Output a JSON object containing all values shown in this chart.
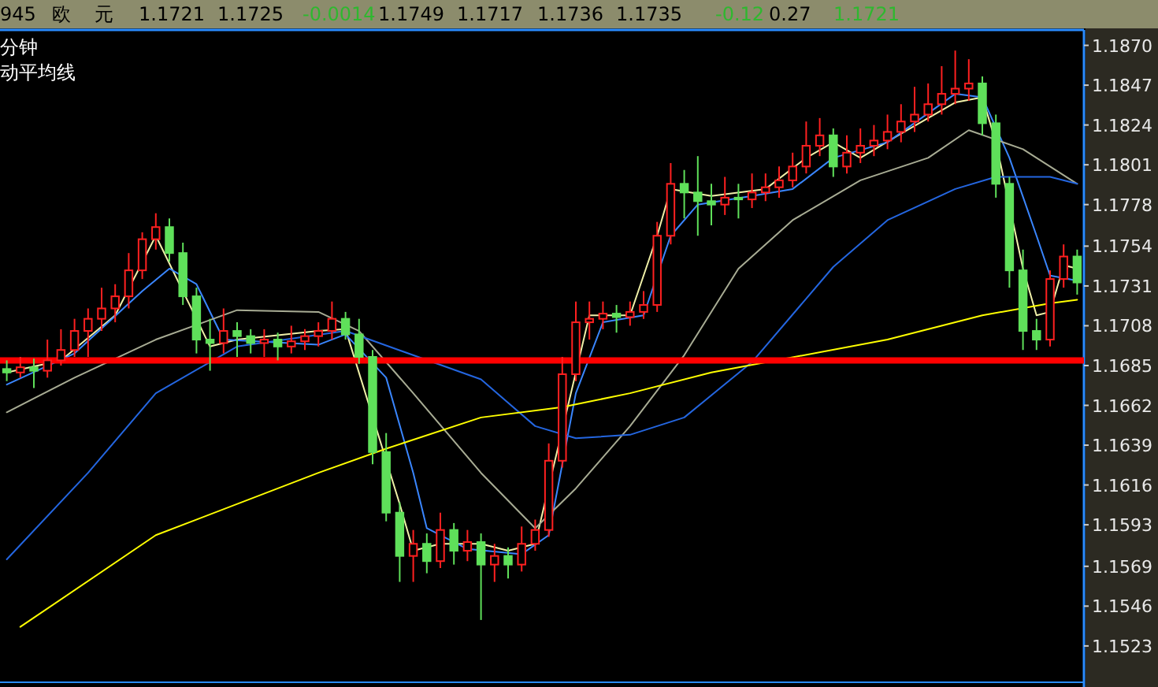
{
  "chart_data": {
    "type": "candlestick",
    "title": "分钟",
    "subtitle": "动平均线",
    "annotations": [
      "945",
      "欧",
      "元",
      "1.1721",
      "1.1725",
      "-0.0014",
      "1.1749",
      "1.1717",
      "1.1736",
      "1.1735",
      "-0.12",
      "0.27",
      "1.1721"
    ],
    "categories": [
      null,
      null,
      null,
      null,
      null,
      null,
      null,
      null,
      null,
      null,
      null,
      null,
      null,
      null,
      null,
      null,
      null,
      null,
      null,
      null,
      null,
      null,
      null,
      null,
      null,
      null,
      null,
      null,
      null,
      null,
      null,
      null,
      null,
      null,
      null,
      null,
      null,
      null,
      null,
      null,
      null,
      null,
      null,
      null,
      null,
      null,
      null,
      null,
      null,
      null,
      null,
      null,
      null,
      null,
      null,
      null,
      null,
      null,
      null,
      null,
      null,
      null,
      null,
      null,
      null,
      null,
      null,
      null,
      null,
      null,
      null,
      null,
      null,
      null,
      null,
      null,
      null,
      null,
      null,
      null
    ],
    "ohlc": [
      [
        1.1683,
        1.1688,
        1.1676,
        1.1681
      ],
      [
        1.1681,
        1.169,
        1.1678,
        1.1684
      ],
      [
        1.1684,
        1.1689,
        1.1672,
        1.1682
      ],
      [
        1.1682,
        1.17,
        1.1678,
        1.1688
      ],
      [
        1.1688,
        1.1706,
        1.1685,
        1.1694
      ],
      [
        1.1694,
        1.1712,
        1.169,
        1.1705
      ],
      [
        1.1705,
        1.1718,
        1.169,
        1.1712
      ],
      [
        1.1712,
        1.173,
        1.1705,
        1.1718
      ],
      [
        1.1718,
        1.1732,
        1.171,
        1.1725
      ],
      [
        1.1725,
        1.175,
        1.1718,
        1.174
      ],
      [
        1.174,
        1.1762,
        1.1735,
        1.1758
      ],
      [
        1.1758,
        1.1773,
        1.1752,
        1.1765
      ],
      [
        1.1765,
        1.177,
        1.1745,
        1.175
      ],
      [
        1.175,
        1.1756,
        1.172,
        1.1725
      ],
      [
        1.1725,
        1.173,
        1.1692,
        1.17
      ],
      [
        1.17,
        1.1712,
        1.1682,
        1.1698
      ],
      [
        1.1698,
        1.1718,
        1.1692,
        1.1705
      ],
      [
        1.1705,
        1.171,
        1.169,
        1.1702
      ],
      [
        1.1702,
        1.1706,
        1.1692,
        1.1698
      ],
      [
        1.1698,
        1.1706,
        1.169,
        1.17
      ],
      [
        1.17,
        1.1704,
        1.1688,
        1.1696
      ],
      [
        1.1696,
        1.1708,
        1.1692,
        1.1699
      ],
      [
        1.1699,
        1.1706,
        1.1694,
        1.1702
      ],
      [
        1.1702,
        1.171,
        1.1696,
        1.1705
      ],
      [
        1.1705,
        1.1722,
        1.17,
        1.1712
      ],
      [
        1.1712,
        1.1716,
        1.17,
        1.1703
      ],
      [
        1.1703,
        1.1712,
        1.1686,
        1.169
      ],
      [
        1.169,
        1.1694,
        1.1628,
        1.1635
      ],
      [
        1.1635,
        1.1646,
        1.1595,
        1.16
      ],
      [
        1.16,
        1.1606,
        1.156,
        1.1575
      ],
      [
        1.1575,
        1.159,
        1.156,
        1.1582
      ],
      [
        1.1582,
        1.1588,
        1.1565,
        1.1572
      ],
      [
        1.1572,
        1.16,
        1.1568,
        1.159
      ],
      [
        1.159,
        1.1594,
        1.157,
        1.1578
      ],
      [
        1.1578,
        1.159,
        1.1572,
        1.1583
      ],
      [
        1.1583,
        1.1588,
        1.1538,
        1.157
      ],
      [
        1.157,
        1.1582,
        1.156,
        1.1575
      ],
      [
        1.1575,
        1.158,
        1.1562,
        1.157
      ],
      [
        1.157,
        1.1592,
        1.1566,
        1.1582
      ],
      [
        1.1582,
        1.1596,
        1.1578,
        1.159
      ],
      [
        1.159,
        1.164,
        1.1586,
        1.163
      ],
      [
        1.163,
        1.169,
        1.1626,
        1.168
      ],
      [
        1.168,
        1.1722,
        1.1676,
        1.171
      ],
      [
        1.171,
        1.1722,
        1.17,
        1.1712
      ],
      [
        1.1712,
        1.1722,
        1.1706,
        1.1715
      ],
      [
        1.1715,
        1.172,
        1.1704,
        1.1713
      ],
      [
        1.1713,
        1.1722,
        1.1708,
        1.1716
      ],
      [
        1.1716,
        1.1728,
        1.1712,
        1.172
      ],
      [
        1.172,
        1.1768,
        1.1716,
        1.176
      ],
      [
        1.176,
        1.1802,
        1.1755,
        1.179
      ],
      [
        1.179,
        1.1798,
        1.177,
        1.1785
      ],
      [
        1.1785,
        1.1806,
        1.176,
        1.178
      ],
      [
        1.178,
        1.179,
        1.1766,
        1.1778
      ],
      [
        1.1778,
        1.1794,
        1.1772,
        1.1782
      ],
      [
        1.1782,
        1.179,
        1.177,
        1.1781
      ],
      [
        1.1781,
        1.1796,
        1.1776,
        1.1785
      ],
      [
        1.1785,
        1.1796,
        1.178,
        1.1788
      ],
      [
        1.1788,
        1.18,
        1.1782,
        1.1792
      ],
      [
        1.1792,
        1.1808,
        1.1788,
        1.18
      ],
      [
        1.18,
        1.1826,
        1.1796,
        1.1812
      ],
      [
        1.1812,
        1.1828,
        1.1806,
        1.1818
      ],
      [
        1.1818,
        1.1822,
        1.1794,
        1.18
      ],
      [
        1.18,
        1.1818,
        1.1796,
        1.1808
      ],
      [
        1.1808,
        1.1822,
        1.1802,
        1.1812
      ],
      [
        1.1812,
        1.1824,
        1.1806,
        1.1815
      ],
      [
        1.1815,
        1.183,
        1.181,
        1.182
      ],
      [
        1.182,
        1.1836,
        1.1814,
        1.1826
      ],
      [
        1.1826,
        1.1846,
        1.182,
        1.183
      ],
      [
        1.183,
        1.1848,
        1.1826,
        1.1836
      ],
      [
        1.1836,
        1.1858,
        1.183,
        1.1842
      ],
      [
        1.1842,
        1.1867,
        1.1836,
        1.1845
      ],
      [
        1.1845,
        1.1862,
        1.1838,
        1.1848
      ],
      [
        1.1848,
        1.1852,
        1.1818,
        1.1825
      ],
      [
        1.1825,
        1.183,
        1.1782,
        1.179
      ],
      [
        1.179,
        1.1794,
        1.173,
        1.174
      ],
      [
        1.174,
        1.1752,
        1.1694,
        1.1705
      ],
      [
        1.1705,
        1.1712,
        1.1694,
        1.17
      ],
      [
        1.17,
        1.174,
        1.1696,
        1.1735
      ],
      [
        1.1735,
        1.1755,
        1.173,
        1.1748
      ],
      [
        1.1748,
        1.1752,
        1.1726,
        1.1733
      ]
    ],
    "series": [
      {
        "type": "line",
        "color": "#f0f0a8",
        "values": [
          1.1681,
          null,
          null,
          null,
          1.1688,
          null,
          null,
          null,
          1.1714,
          null,
          null,
          1.176,
          null,
          null,
          null,
          1.1696,
          null,
          1.17,
          null,
          null,
          null,
          null,
          null,
          1.1705,
          null,
          1.1706,
          null,
          null,
          null,
          1.1605,
          1.1578,
          null,
          1.1582,
          null,
          null,
          1.1582,
          null,
          1.1578,
          null,
          1.1582,
          null,
          null,
          null,
          1.1714,
          null,
          null,
          1.1714,
          null,
          1.176,
          1.1787,
          null,
          null,
          1.1783,
          null,
          null,
          null,
          1.1787,
          null,
          null,
          1.1805,
          null,
          1.1814,
          null,
          1.1805,
          null,
          null,
          1.1819,
          null,
          null,
          null,
          1.1837,
          null,
          1.184,
          1.1814,
          null,
          1.1741,
          1.1714,
          1.1716,
          1.1743,
          1.1741
        ]
      },
      {
        "type": "line",
        "color": "#3a86ff",
        "values": [
          1.1674,
          null,
          null,
          null,
          null,
          1.1692,
          null,
          null,
          null,
          null,
          1.1728,
          null,
          1.1741,
          null,
          1.1732,
          null,
          1.17,
          null,
          null,
          null,
          null,
          null,
          null,
          1.1697,
          null,
          1.1703,
          null,
          null,
          1.1678,
          null,
          1.1623,
          1.1591,
          null,
          null,
          1.1579,
          null,
          null,
          null,
          1.1576,
          null,
          1.1587,
          null,
          1.1669,
          null,
          1.171,
          null,
          null,
          1.1714,
          null,
          1.176,
          null,
          1.1778,
          null,
          null,
          null,
          1.1783,
          null,
          null,
          1.1787,
          null,
          null,
          1.1805,
          null,
          null,
          null,
          1.1814,
          null,
          null,
          null,
          null,
          1.1842,
          null,
          1.184,
          null,
          1.1805,
          null,
          1.176,
          1.1737,
          null,
          1.1734
        ]
      },
      {
        "type": "line",
        "color": "#a8ac94",
        "values": [
          1.1658,
          null,
          null,
          null,
          null,
          1.1678,
          null,
          null,
          null,
          null,
          null,
          1.17,
          null,
          null,
          null,
          null,
          null,
          1.1717,
          null,
          null,
          null,
          null,
          null,
          1.1716,
          null,
          null,
          1.1705,
          null,
          null,
          null,
          1.1669,
          null,
          null,
          null,
          null,
          1.1623,
          null,
          null,
          null,
          1.1591,
          null,
          null,
          1.1614,
          null,
          null,
          null,
          1.165,
          null,
          null,
          null,
          1.1691,
          null,
          null,
          null,
          1.1741,
          null,
          null,
          null,
          1.1769,
          null,
          null,
          null,
          null,
          1.1792,
          null,
          null,
          null,
          null,
          1.1805,
          null,
          null,
          1.1821,
          null,
          null,
          null,
          1.181,
          null,
          null,
          null,
          1.179
        ]
      },
      {
        "type": "line",
        "color": "#2466e0",
        "values": [
          1.1573,
          null,
          null,
          null,
          null,
          null,
          1.1623,
          null,
          null,
          null,
          null,
          1.1669,
          null,
          null,
          null,
          null,
          null,
          1.1696,
          null,
          null,
          null,
          null,
          null,
          null,
          null,
          1.1705,
          null,
          null,
          null,
          null,
          null,
          null,
          null,
          null,
          null,
          1.1677,
          null,
          null,
          null,
          1.165,
          null,
          null,
          1.1643,
          null,
          null,
          null,
          1.1645,
          null,
          null,
          null,
          1.1655,
          null,
          null,
          null,
          null,
          1.1687,
          null,
          null,
          null,
          null,
          null,
          1.1742,
          null,
          null,
          null,
          1.1769,
          null,
          null,
          null,
          null,
          1.1787,
          null,
          null,
          1.1794,
          null,
          null,
          null,
          1.1794,
          null,
          1.179
        ]
      },
      {
        "type": "line",
        "color": "#ffff00",
        "values": [
          null,
          1.1534,
          null,
          null,
          null,
          null,
          null,
          null,
          null,
          null,
          null,
          1.1587,
          null,
          null,
          null,
          null,
          null,
          null,
          null,
          null,
          null,
          null,
          null,
          1.1623,
          null,
          null,
          null,
          null,
          1.1637,
          null,
          null,
          null,
          null,
          null,
          null,
          1.1655,
          null,
          null,
          null,
          null,
          null,
          1.1661,
          null,
          null,
          null,
          null,
          1.1669,
          null,
          null,
          null,
          null,
          null,
          1.1681,
          null,
          null,
          null,
          null,
          null,
          null,
          null,
          null,
          null,
          null,
          null,
          null,
          1.17,
          null,
          null,
          null,
          null,
          null,
          null,
          1.1714,
          null,
          null,
          null,
          null,
          1.1721,
          null,
          1.1723
        ]
      }
    ],
    "ylim": [
      1.1502,
      1.1878
    ],
    "yticks": [
      {
        "value": 1.187,
        "label": "1.1870"
      },
      1.1847,
      1.1824,
      1.1801,
      1.1778,
      1.1754,
      1.1731,
      1.1708,
      1.1685,
      1.1662,
      1.1639,
      1.1616,
      1.1593,
      1.1569,
      1.1546,
      1.1523
    ],
    "ref_lines": [
      {
        "axis": "y",
        "value": 1.1688,
        "color": "#ff0000"
      }
    ]
  }
}
